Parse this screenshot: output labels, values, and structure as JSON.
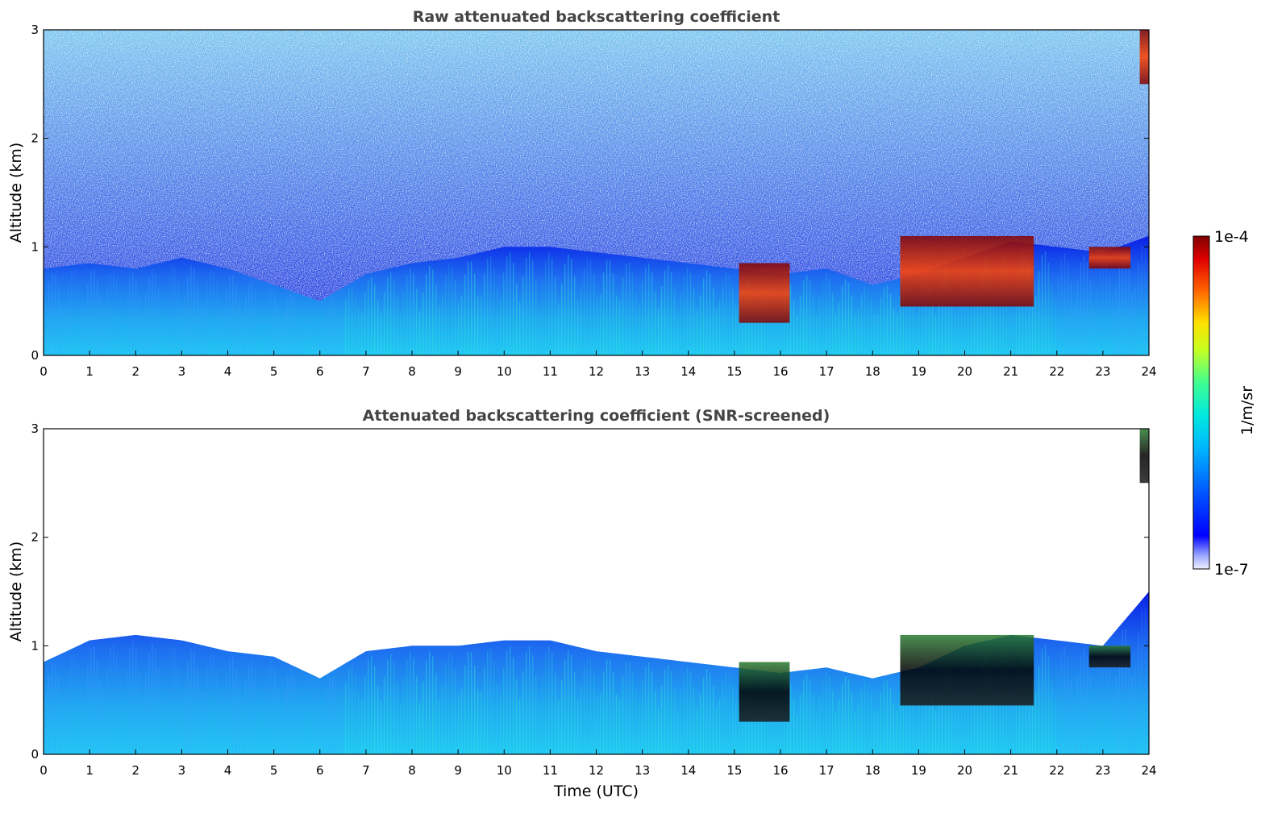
{
  "chart_data": [
    {
      "type": "heatmap",
      "title": "Raw attenuated backscattering coefficient",
      "xlabel": "",
      "ylabel": "Altitude (km)",
      "xlim": [
        0,
        24
      ],
      "ylim": [
        0,
        3
      ],
      "x_ticks": [
        "0",
        "1",
        "2",
        "3",
        "4",
        "5",
        "6",
        "7",
        "8",
        "9",
        "10",
        "11",
        "12",
        "13",
        "14",
        "15",
        "16",
        "17",
        "18",
        "19",
        "20",
        "21",
        "22",
        "23",
        "24"
      ],
      "y_ticks": [
        "0",
        "1",
        "2",
        "3"
      ],
      "grid": false,
      "features": {
        "boundary_layer_top_km": [
          [
            0,
            0.8
          ],
          [
            1,
            0.85
          ],
          [
            2,
            0.8
          ],
          [
            3,
            0.9
          ],
          [
            4,
            0.8
          ],
          [
            5,
            0.65
          ],
          [
            6,
            0.5
          ],
          [
            7,
            0.75
          ],
          [
            8,
            0.85
          ],
          [
            9,
            0.9
          ],
          [
            10,
            1.0
          ],
          [
            11,
            1.0
          ],
          [
            12,
            0.95
          ],
          [
            13,
            0.9
          ],
          [
            14,
            0.85
          ],
          [
            15,
            0.8
          ],
          [
            16,
            0.75
          ],
          [
            17,
            0.8
          ],
          [
            18,
            0.65
          ],
          [
            19,
            0.75
          ],
          [
            20,
            0.9
          ],
          [
            21,
            1.05
          ],
          [
            22,
            1.0
          ],
          [
            23,
            0.95
          ],
          [
            24,
            1.1
          ]
        ],
        "cloud_layers": [
          {
            "t_start": 15.1,
            "t_end": 16.2,
            "alt_bottom_km": 0.3,
            "alt_top_km": 0.85
          },
          {
            "t_start": 18.6,
            "t_end": 21.5,
            "alt_bottom_km": 0.45,
            "alt_top_km": 1.1
          },
          {
            "t_start": 22.7,
            "t_end": 23.6,
            "alt_bottom_km": 0.8,
            "alt_top_km": 1.0
          },
          {
            "t_start": 23.8,
            "t_end": 24.0,
            "alt_bottom_km": 2.5,
            "alt_top_km": 3.0
          }
        ]
      }
    },
    {
      "type": "heatmap",
      "title": "Attenuated backscattering coefficient (SNR-screened)",
      "xlabel": "Time (UTC)",
      "ylabel": "Altitude (km)",
      "xlim": [
        0,
        24
      ],
      "ylim": [
        0,
        3
      ],
      "x_ticks": [
        "0",
        "1",
        "2",
        "3",
        "4",
        "5",
        "6",
        "7",
        "8",
        "9",
        "10",
        "11",
        "12",
        "13",
        "14",
        "15",
        "16",
        "17",
        "18",
        "19",
        "20",
        "21",
        "22",
        "23",
        "24"
      ],
      "y_ticks": [
        "0",
        "1",
        "2",
        "3"
      ],
      "grid": false,
      "features": {
        "boundary_layer_top_km": [
          [
            0,
            0.85
          ],
          [
            1,
            1.05
          ],
          [
            2,
            1.1
          ],
          [
            3,
            1.05
          ],
          [
            4,
            0.95
          ],
          [
            5,
            0.9
          ],
          [
            6,
            0.7
          ],
          [
            7,
            0.95
          ],
          [
            8,
            1.0
          ],
          [
            9,
            1.0
          ],
          [
            10,
            1.05
          ],
          [
            11,
            1.05
          ],
          [
            12,
            0.95
          ],
          [
            13,
            0.9
          ],
          [
            14,
            0.85
          ],
          [
            15,
            0.8
          ],
          [
            16,
            0.75
          ],
          [
            17,
            0.8
          ],
          [
            18,
            0.7
          ],
          [
            19,
            0.8
          ],
          [
            20,
            1.0
          ],
          [
            21,
            1.1
          ],
          [
            22,
            1.05
          ],
          [
            23,
            1.0
          ],
          [
            24,
            1.5
          ]
        ],
        "cloud_layers": [
          {
            "t_start": 15.1,
            "t_end": 16.2,
            "alt_bottom_km": 0.3,
            "alt_top_km": 0.85
          },
          {
            "t_start": 18.6,
            "t_end": 21.5,
            "alt_bottom_km": 0.45,
            "alt_top_km": 1.1
          },
          {
            "t_start": 22.7,
            "t_end": 23.6,
            "alt_bottom_km": 0.8,
            "alt_top_km": 1.0
          },
          {
            "t_start": 23.8,
            "t_end": 24.0,
            "alt_bottom_km": 2.5,
            "alt_top_km": 3.0
          }
        ]
      }
    }
  ],
  "colorbar": {
    "min_label": "1e-7",
    "max_label": "1e-4",
    "unit_label": "1/m/sr",
    "scale": "log",
    "colormap": [
      "#ffffff",
      "#0000ff",
      "#00d4ff",
      "#7fff7f",
      "#ffd400",
      "#ff4000",
      "#7f0000"
    ]
  },
  "colors": {
    "title_color": "#444444",
    "background": "#ffffff"
  }
}
